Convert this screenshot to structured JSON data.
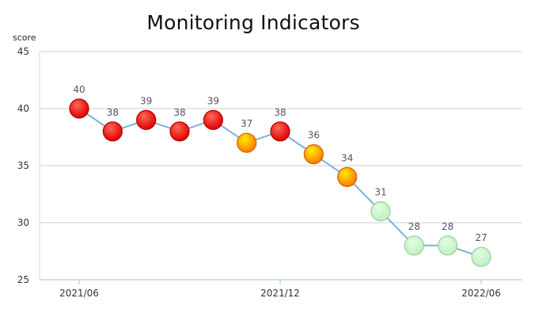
{
  "chart_data": {
    "type": "line",
    "title": "Monitoring Indicators",
    "ylabel": "score",
    "xlabel": "",
    "ylim": [
      25,
      45
    ],
    "yticks": [
      25,
      30,
      35,
      40,
      45
    ],
    "grid": true,
    "x_tick_labels": [
      {
        "index": 0,
        "label": "2021/06"
      },
      {
        "index": 6,
        "label": "2021/12"
      },
      {
        "index": 12,
        "label": "2022/06"
      }
    ],
    "series": [
      {
        "values": [
          40,
          38,
          39,
          38,
          39,
          37,
          38,
          36,
          34,
          31,
          28,
          28,
          27
        ],
        "line_color": "#7fb0d6",
        "point_levels": [
          "red",
          "red",
          "red",
          "red",
          "red",
          "yellow",
          "red",
          "yellow",
          "yellow",
          "green",
          "green",
          "green",
          "green"
        ]
      }
    ],
    "level_colors": {
      "red": {
        "light": "#ff6a5a",
        "dark": "#e00000",
        "stroke": "#b00000"
      },
      "yellow": {
        "light": "#ffee00",
        "dark": "#ff7a00",
        "stroke": "#d06000"
      },
      "green": {
        "light": "#e4fde4",
        "dark": "#c0f0c0",
        "stroke": "#9ccc9c"
      }
    }
  }
}
